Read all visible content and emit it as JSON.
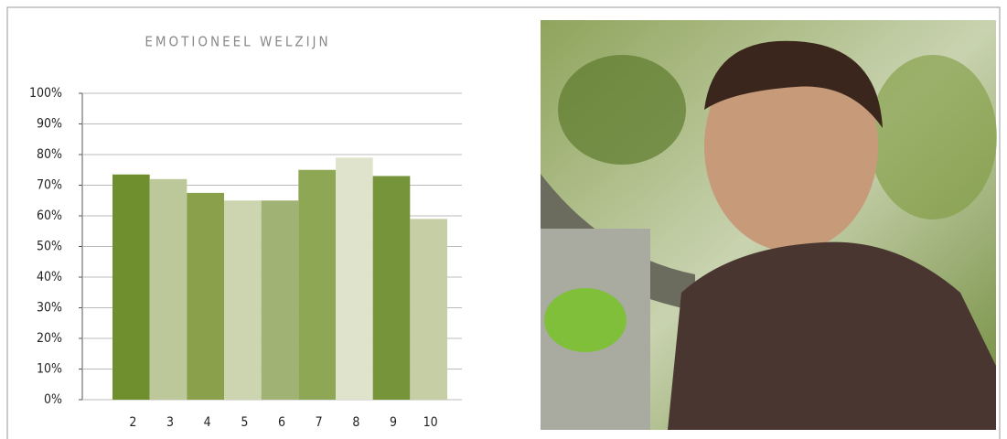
{
  "chart_data": {
    "type": "bar",
    "title": "EMOTIONEEL WELZIJN",
    "categories": [
      "2",
      "3",
      "4",
      "5",
      "6",
      "7",
      "8",
      "9",
      "10"
    ],
    "values": [
      73.5,
      72,
      67.5,
      65,
      65,
      75,
      79,
      73,
      59
    ],
    "colors": [
      "#6f8f2e",
      "#bcc79a",
      "#8aa04a",
      "#cdd5b0",
      "#a0b374",
      "#8da755",
      "#dfe3cc",
      "#76953a",
      "#c5cea4"
    ],
    "ylim": [
      0,
      100
    ],
    "yticks": [
      {
        "value": 0,
        "label": "0%"
      },
      {
        "value": 10,
        "label": "10%"
      },
      {
        "value": 20,
        "label": "20%"
      },
      {
        "value": 30,
        "label": "30%"
      },
      {
        "value": 40,
        "label": "40%"
      },
      {
        "value": 50,
        "label": "50%"
      },
      {
        "value": 60,
        "label": "60%"
      },
      {
        "value": 70,
        "label": "70%"
      },
      {
        "value": 80,
        "label": "80%"
      },
      {
        "value": 90,
        "label": "90%"
      },
      {
        "value": 100,
        "label": "100%"
      }
    ],
    "grid": true
  }
}
